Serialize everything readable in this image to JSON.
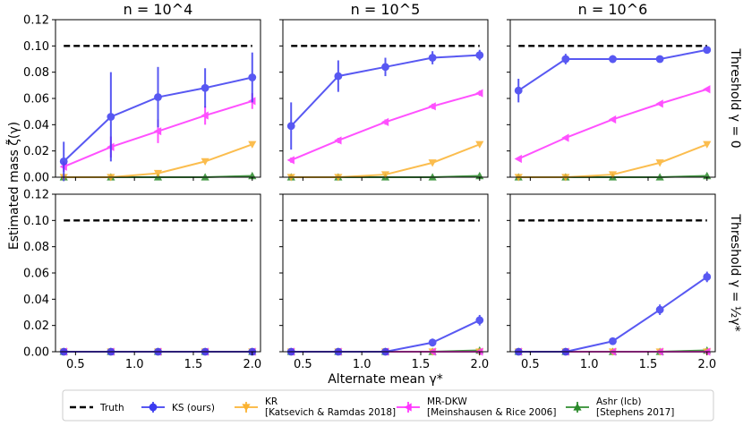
{
  "chart_data": {
    "type": "line",
    "col_titles": [
      "n = 10^4",
      "n = 10^5",
      "n = 10^6"
    ],
    "row_titles": [
      "Threshold γ = 0",
      "Threshold γ = ½γ*"
    ],
    "xlabel": "Alternate mean γ*",
    "ylabel": "Estimated mass ζ̃(γ)",
    "xlim": [
      0.33,
      2.07
    ],
    "ylim": [
      0.0,
      0.12
    ],
    "xticks": [
      "0.5",
      "1.0",
      "1.5",
      "2.0"
    ],
    "yticks": [
      "0.00",
      "0.02",
      "0.04",
      "0.06",
      "0.08",
      "0.10",
      "0.12"
    ],
    "x": [
      0.4,
      0.8,
      1.2,
      1.6,
      2.0
    ],
    "truth": 0.1,
    "legend": {
      "placement": "bottom",
      "entries": [
        {
          "key": "truth",
          "label": [
            "Truth"
          ]
        },
        {
          "key": "ks",
          "label": [
            "KS (ours)"
          ]
        },
        {
          "key": "kr",
          "label": [
            "KR",
            "[Katsevich & Ramdas 2018]"
          ]
        },
        {
          "key": "mrdkw",
          "label": [
            "MR-DKW",
            "[Meinshausen & Rice 2006]"
          ]
        },
        {
          "key": "ashr",
          "label": [
            "Ashr (lcb)",
            "[Stephens 2017]"
          ]
        }
      ]
    },
    "series_styles": {
      "truth": {
        "color": "#000000",
        "marker": "none"
      },
      "ks": {
        "color": "#3b3bf0",
        "marker": "circle"
      },
      "kr": {
        "color": "#fbb230",
        "marker": "triangle-down"
      },
      "mrdkw": {
        "color": "#ff33ff",
        "marker": "triangle-left"
      },
      "ashr": {
        "color": "#2a8a2a",
        "marker": "triangle-up"
      }
    },
    "panels": [
      {
        "row": 0,
        "col": 0,
        "series": {
          "ks": {
            "y": [
              0.012,
              0.046,
              0.061,
              0.068,
              0.076
            ],
            "err": [
              0.015,
              0.034,
              0.023,
              0.015,
              0.019
            ]
          },
          "mrdkw": {
            "y": [
              0.008,
              0.023,
              0.035,
              0.047,
              0.058
            ],
            "err": [
              0.004,
              0.008,
              0.009,
              0.007,
              0.006
            ]
          },
          "kr": {
            "y": [
              0.0,
              0.0,
              0.003,
              0.012,
              0.025
            ],
            "err": [
              0,
              0,
              0.001,
              0.001,
              0.002
            ]
          },
          "ashr": {
            "y": [
              0.0,
              0.0,
              0.0,
              0.0,
              0.001
            ],
            "err": [
              0,
              0,
              0,
              0,
              0
            ]
          }
        }
      },
      {
        "row": 0,
        "col": 1,
        "series": {
          "ks": {
            "y": [
              0.039,
              0.077,
              0.084,
              0.091,
              0.093
            ],
            "err": [
              0.018,
              0.012,
              0.007,
              0.005,
              0.004
            ]
          },
          "mrdkw": {
            "y": [
              0.013,
              0.028,
              0.042,
              0.054,
              0.064
            ],
            "err": [
              0.002,
              0.002,
              0.002,
              0.002,
              0.002
            ]
          },
          "kr": {
            "y": [
              0.0,
              0.0,
              0.002,
              0.011,
              0.025
            ],
            "err": [
              0,
              0,
              0.001,
              0.001,
              0.001
            ]
          },
          "ashr": {
            "y": [
              0.0,
              0.0,
              0.0,
              0.0,
              0.001
            ],
            "err": [
              0,
              0,
              0,
              0,
              0
            ]
          }
        }
      },
      {
        "row": 0,
        "col": 2,
        "series": {
          "ks": {
            "y": [
              0.066,
              0.09,
              0.09,
              0.09,
              0.097
            ],
            "err": [
              0.009,
              0.004,
              0.003,
              0.001,
              0.002
            ]
          },
          "mrdkw": {
            "y": [
              0.014,
              0.03,
              0.044,
              0.056,
              0.067
            ],
            "err": [
              0.001,
              0.001,
              0.001,
              0.001,
              0.001
            ]
          },
          "kr": {
            "y": [
              0.0,
              0.0,
              0.002,
              0.011,
              0.025
            ],
            "err": [
              0,
              0,
              0,
              0.001,
              0.001
            ]
          },
          "ashr": {
            "y": [
              0.0,
              0.0,
              0.0,
              0.0,
              0.001
            ],
            "err": [
              0,
              0,
              0,
              0,
              0
            ]
          }
        }
      },
      {
        "row": 1,
        "col": 0,
        "series": {
          "ks": {
            "y": [
              0.0,
              0.0,
              0.0,
              0.0,
              0.0
            ],
            "err": [
              0,
              0,
              0,
              0,
              0
            ]
          },
          "mrdkw": {
            "y": [
              0.0,
              0.0,
              0.0,
              0.0,
              0.0
            ],
            "err": [
              0,
              0,
              0,
              0,
              0
            ]
          },
          "kr": {
            "y": [
              0.0,
              0.0,
              0.0,
              0.0,
              0.0
            ],
            "err": [
              0,
              0,
              0,
              0,
              0
            ]
          },
          "ashr": {
            "y": [
              0.0,
              0.0,
              0.0,
              0.0,
              0.0
            ],
            "err": [
              0,
              0,
              0,
              0,
              0
            ]
          }
        }
      },
      {
        "row": 1,
        "col": 1,
        "series": {
          "ks": {
            "y": [
              0.0,
              0.0,
              0.0,
              0.007,
              0.024
            ],
            "err": [
              0,
              0,
              0,
              0.003,
              0.004
            ]
          },
          "mrdkw": {
            "y": [
              0.0,
              0.0,
              0.0,
              0.0,
              0.0
            ],
            "err": [
              0,
              0,
              0,
              0,
              0
            ]
          },
          "kr": {
            "y": [
              0.0,
              0.0,
              0.0,
              0.0,
              0.0
            ],
            "err": [
              0,
              0,
              0,
              0,
              0
            ]
          },
          "ashr": {
            "y": [
              0.0,
              0.0,
              0.0,
              0.0,
              0.001
            ],
            "err": [
              0,
              0,
              0,
              0,
              0
            ]
          }
        }
      },
      {
        "row": 1,
        "col": 2,
        "series": {
          "ks": {
            "y": [
              0.0,
              0.0,
              0.008,
              0.032,
              0.057
            ],
            "err": [
              0,
              0,
              0.002,
              0.004,
              0.004
            ]
          },
          "mrdkw": {
            "y": [
              0.0,
              0.0,
              0.0,
              0.0,
              0.0
            ],
            "err": [
              0,
              0,
              0,
              0,
              0
            ]
          },
          "kr": {
            "y": [
              0.0,
              0.0,
              0.0,
              0.0,
              0.0
            ],
            "err": [
              0,
              0,
              0,
              0,
              0
            ]
          },
          "ashr": {
            "y": [
              0.0,
              0.0,
              0.0,
              0.0,
              0.001
            ],
            "err": [
              0,
              0,
              0,
              0,
              0
            ]
          }
        }
      }
    ]
  }
}
